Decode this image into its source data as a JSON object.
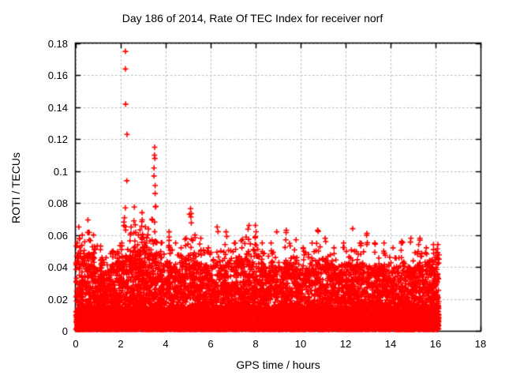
{
  "title": "Day 186 of 2014, Rate Of TEC Index for receiver norf",
  "axes": {
    "xlabel": "GPS time / hours",
    "ylabel": "ROTI / TECUs",
    "xlim": [
      0,
      18
    ],
    "ylim": [
      0,
      0.18
    ],
    "xticks": [
      {
        "v": 0,
        "label": "0"
      },
      {
        "v": 2,
        "label": "2"
      },
      {
        "v": 4,
        "label": "4"
      },
      {
        "v": 6,
        "label": "6"
      },
      {
        "v": 8,
        "label": "8"
      },
      {
        "v": 10,
        "label": "10"
      },
      {
        "v": 12,
        "label": "12"
      },
      {
        "v": 14,
        "label": "14"
      },
      {
        "v": 16,
        "label": "16"
      },
      {
        "v": 18,
        "label": "18"
      }
    ],
    "yticks": [
      {
        "v": 0,
        "label": "0"
      },
      {
        "v": 0.02,
        "label": "0.02"
      },
      {
        "v": 0.04,
        "label": "0.04"
      },
      {
        "v": 0.06,
        "label": "0.06"
      },
      {
        "v": 0.08,
        "label": "0.08"
      },
      {
        "v": 0.1,
        "label": "0.1"
      },
      {
        "v": 0.12,
        "label": "0.12"
      },
      {
        "v": 0.14,
        "label": "0.14"
      },
      {
        "v": 0.16,
        "label": "0.16"
      },
      {
        "v": 0.18,
        "label": "0.18"
      }
    ],
    "grid": "dashed"
  },
  "colors": {
    "marker": "#ff0000",
    "grid": "#b8b8b8",
    "border": "#000000",
    "background": "#ffffff",
    "text": "#000000"
  },
  "chart_data": {
    "type": "scatter",
    "marker": "plus",
    "marker_color": "#ff0000",
    "title": "Day 186 of 2014, Rate Of TEC Index for receiver norf",
    "xlabel": "GPS time / hours",
    "ylabel": "ROTI / TECUs",
    "xlim": [
      0,
      18
    ],
    "ylim": [
      0,
      0.18
    ],
    "legend": "none",
    "x_range_of_data": [
      0.02,
      16.15
    ],
    "description": "Dense band of ROTI values 0-0.05 TECUs across 0-16.2 h with vertical spike clusters to 0.05-0.078 and isolated outliers near 2.2 h and 3.5 h",
    "outliers": [
      [
        2.21,
        0.175
      ],
      [
        2.21,
        0.164
      ],
      [
        2.22,
        0.142
      ],
      [
        2.28,
        0.123
      ],
      [
        2.27,
        0.094
      ],
      [
        3.51,
        0.115
      ],
      [
        3.5,
        0.11
      ],
      [
        3.52,
        0.108
      ],
      [
        3.48,
        0.102
      ],
      [
        3.48,
        0.097
      ],
      [
        3.53,
        0.091
      ],
      [
        3.53,
        0.086
      ]
    ],
    "band_profile": {
      "x": [
        0.0,
        0.5,
        1.0,
        1.5,
        2.0,
        2.5,
        3.0,
        3.5,
        4.0,
        4.5,
        5.0,
        5.5,
        6.0,
        6.5,
        7.0,
        7.5,
        8.0,
        8.5,
        9.0,
        9.5,
        10.0,
        10.5,
        11.0,
        11.5,
        12.0,
        12.5,
        13.0,
        13.5,
        14.0,
        14.5,
        15.0,
        15.5,
        16.0,
        16.2
      ],
      "top": [
        0.046,
        0.05,
        0.042,
        0.038,
        0.046,
        0.05,
        0.052,
        0.05,
        0.043,
        0.041,
        0.048,
        0.042,
        0.04,
        0.042,
        0.044,
        0.047,
        0.05,
        0.04,
        0.04,
        0.044,
        0.038,
        0.042,
        0.045,
        0.04,
        0.042,
        0.042,
        0.04,
        0.042,
        0.038,
        0.042,
        0.04,
        0.042,
        0.045,
        0.04
      ]
    },
    "peaks": [
      [
        0.15,
        0.065,
        10
      ],
      [
        0.3,
        0.06,
        8
      ],
      [
        0.55,
        0.0695,
        14
      ],
      [
        0.8,
        0.06,
        10
      ],
      [
        1.1,
        0.053,
        8
      ],
      [
        1.65,
        0.05,
        8
      ],
      [
        2.05,
        0.055,
        8
      ],
      [
        2.2,
        0.077,
        16
      ],
      [
        2.45,
        0.065,
        8
      ],
      [
        2.6,
        0.0775,
        12
      ],
      [
        2.8,
        0.06,
        8
      ],
      [
        2.95,
        0.074,
        14
      ],
      [
        3.1,
        0.065,
        8
      ],
      [
        3.4,
        0.07,
        10
      ],
      [
        3.55,
        0.078,
        16
      ],
      [
        3.8,
        0.055,
        6
      ],
      [
        4.15,
        0.062,
        10
      ],
      [
        4.45,
        0.055,
        6
      ],
      [
        4.7,
        0.052,
        6
      ],
      [
        5.1,
        0.0765,
        14
      ],
      [
        5.3,
        0.06,
        8
      ],
      [
        5.55,
        0.058,
        8
      ],
      [
        5.9,
        0.052,
        6
      ],
      [
        6.3,
        0.065,
        10
      ],
      [
        6.7,
        0.062,
        8
      ],
      [
        7.1,
        0.055,
        8
      ],
      [
        7.4,
        0.052,
        6
      ],
      [
        7.7,
        0.066,
        12
      ],
      [
        8.0,
        0.066,
        14
      ],
      [
        8.3,
        0.055,
        8
      ],
      [
        8.7,
        0.055,
        6
      ],
      [
        8.95,
        0.062,
        5
      ],
      [
        9.35,
        0.063,
        8
      ],
      [
        9.8,
        0.057,
        6
      ],
      [
        10.1,
        0.052,
        6
      ],
      [
        10.5,
        0.055,
        6
      ],
      [
        10.75,
        0.063,
        8
      ],
      [
        11.1,
        0.058,
        6
      ],
      [
        11.5,
        0.052,
        6
      ],
      [
        11.9,
        0.055,
        6
      ],
      [
        12.3,
        0.064,
        10
      ],
      [
        12.65,
        0.055,
        6
      ],
      [
        12.95,
        0.061,
        4
      ],
      [
        13.3,
        0.055,
        6
      ],
      [
        13.7,
        0.055,
        6
      ],
      [
        14.1,
        0.052,
        6
      ],
      [
        14.5,
        0.056,
        8
      ],
      [
        14.9,
        0.058,
        8
      ],
      [
        15.3,
        0.058,
        8
      ],
      [
        15.6,
        0.052,
        6
      ],
      [
        15.9,
        0.054,
        10
      ],
      [
        16.1,
        0.054,
        8
      ]
    ],
    "gen": {
      "seed": 186,
      "col_step": 0.0275,
      "base_pts": 13,
      "fill_pts": 5,
      "shape_exp": 2.0,
      "x_jitter": 0.02
    }
  }
}
